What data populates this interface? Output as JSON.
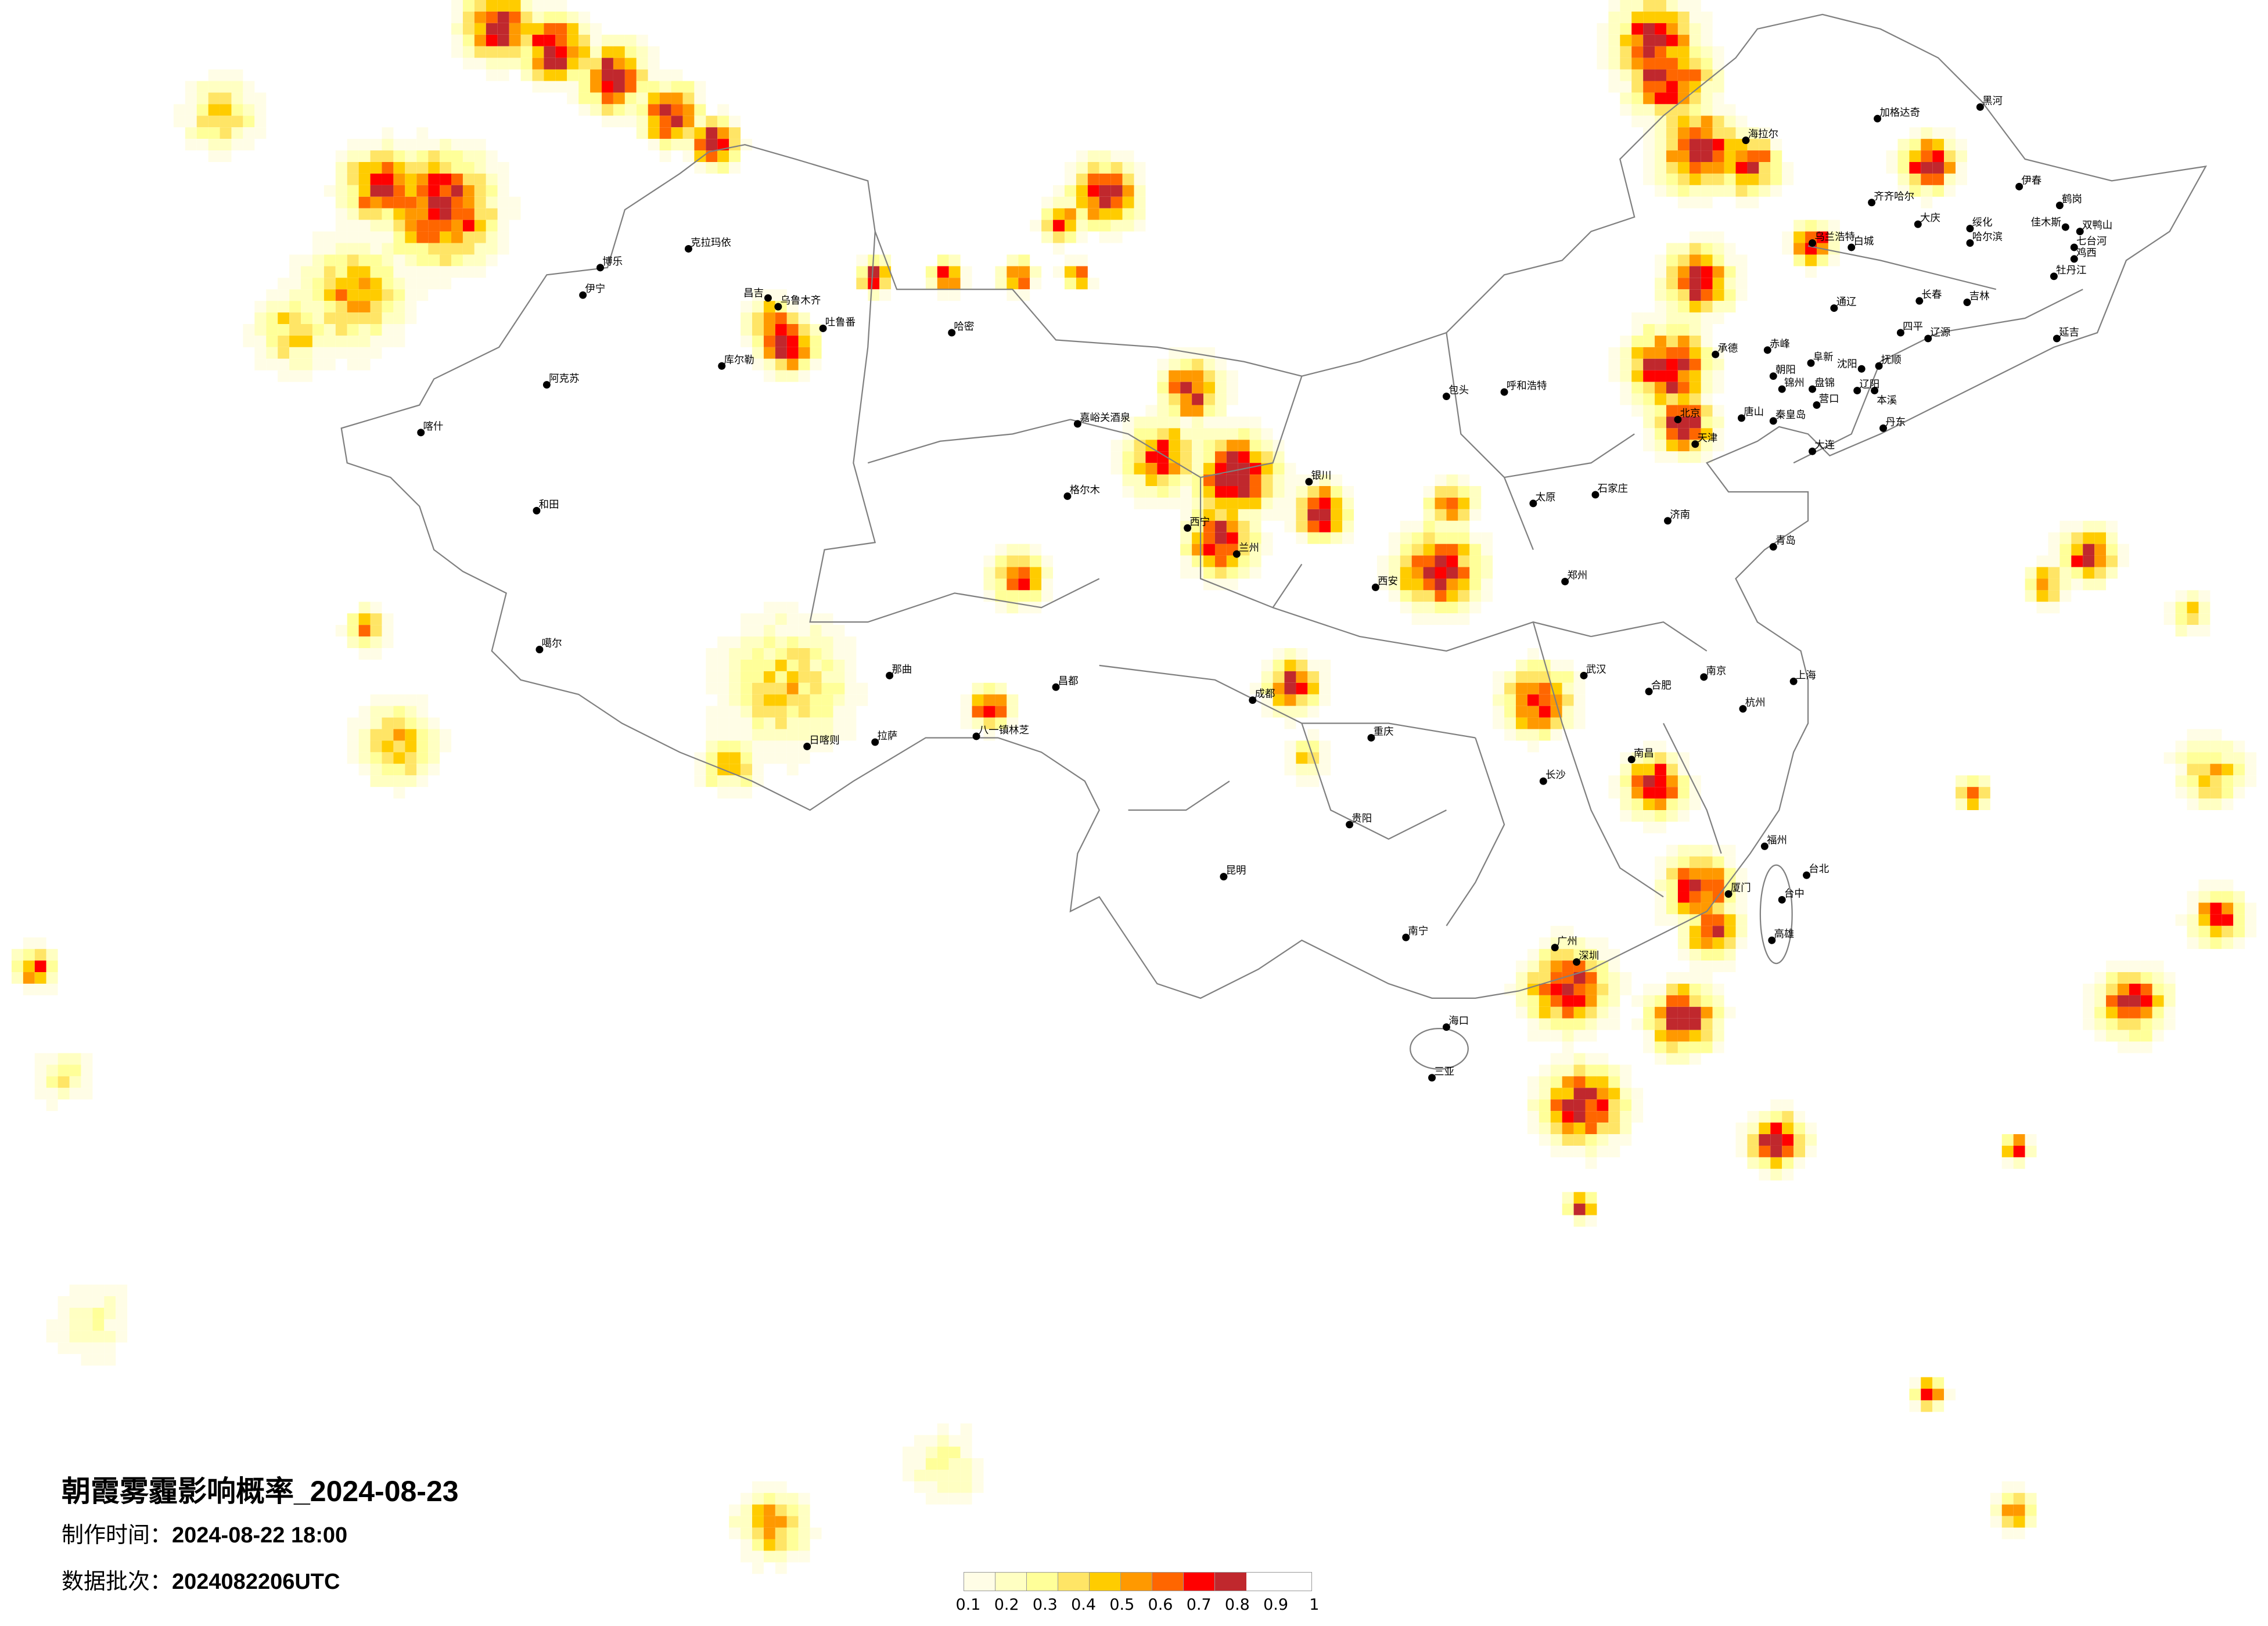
{
  "title": "朝霞雾霾影响概率_2024-08-23",
  "made_label": "制作时间：",
  "made_value": "2024-08-22 18:00",
  "batch_label": "数据批次：",
  "batch_value": "2024082206UTC",
  "legend": {
    "labels": [
      "0.1",
      "0.2",
      "0.3",
      "0.4",
      "0.5",
      "0.6",
      "0.7",
      "0.8",
      "0.9",
      "1"
    ],
    "colors": [
      "#fffde6",
      "#ffffc2",
      "#ffff99",
      "#ffe566",
      "#ffcc00",
      "#ff9900",
      "#ff6600",
      "#ff0000",
      "#c0282d"
    ]
  },
  "border_color": "#808080",
  "cities": [
    "加格达奇",
    "黑河",
    "海拉尔",
    "齐齐哈尔",
    "伊春",
    "鹤岗",
    "佳木斯",
    "双鸭山",
    "大庆",
    "绥化",
    "哈尔滨",
    "七台河",
    "鸡西",
    "乌兰浩特",
    "白城",
    "牡丹江",
    "长春",
    "吉林",
    "通辽",
    "四平",
    "辽源",
    "延吉",
    "赤峰",
    "阜新",
    "沈阳",
    "抚顺",
    "朝阳",
    "锦州",
    "盘锦",
    "辽阳",
    "本溪",
    "营口",
    "丹东",
    "秦皇岛",
    "唐山",
    "承德",
    "大连",
    "克拉玛依",
    "博乐",
    "伊宁",
    "昌吉",
    "乌鲁木齐",
    "吐鲁番",
    "库尔勒",
    "哈密",
    "阿克苏",
    "喀什",
    "和田",
    "噶尔",
    "日喀则",
    "拉萨",
    "八一镇林芝",
    "那曲",
    "昌都",
    "嘉峪关酒泉",
    "格尔木",
    "西宁",
    "兰州",
    "银川",
    "呼和浩特",
    "包头",
    "北京",
    "天津",
    "石家庄",
    "太原",
    "济南",
    "青岛",
    "郑州",
    "西安",
    "成都",
    "重庆",
    "武汉",
    "长沙",
    "南昌",
    "杭州",
    "上海",
    "南京",
    "合肥",
    "福州",
    "台北",
    "广州",
    "深圳",
    "南宁",
    "海口",
    "昆明",
    "贵阳",
    "三亚",
    "厦门",
    "台中",
    "高雄"
  ]
}
